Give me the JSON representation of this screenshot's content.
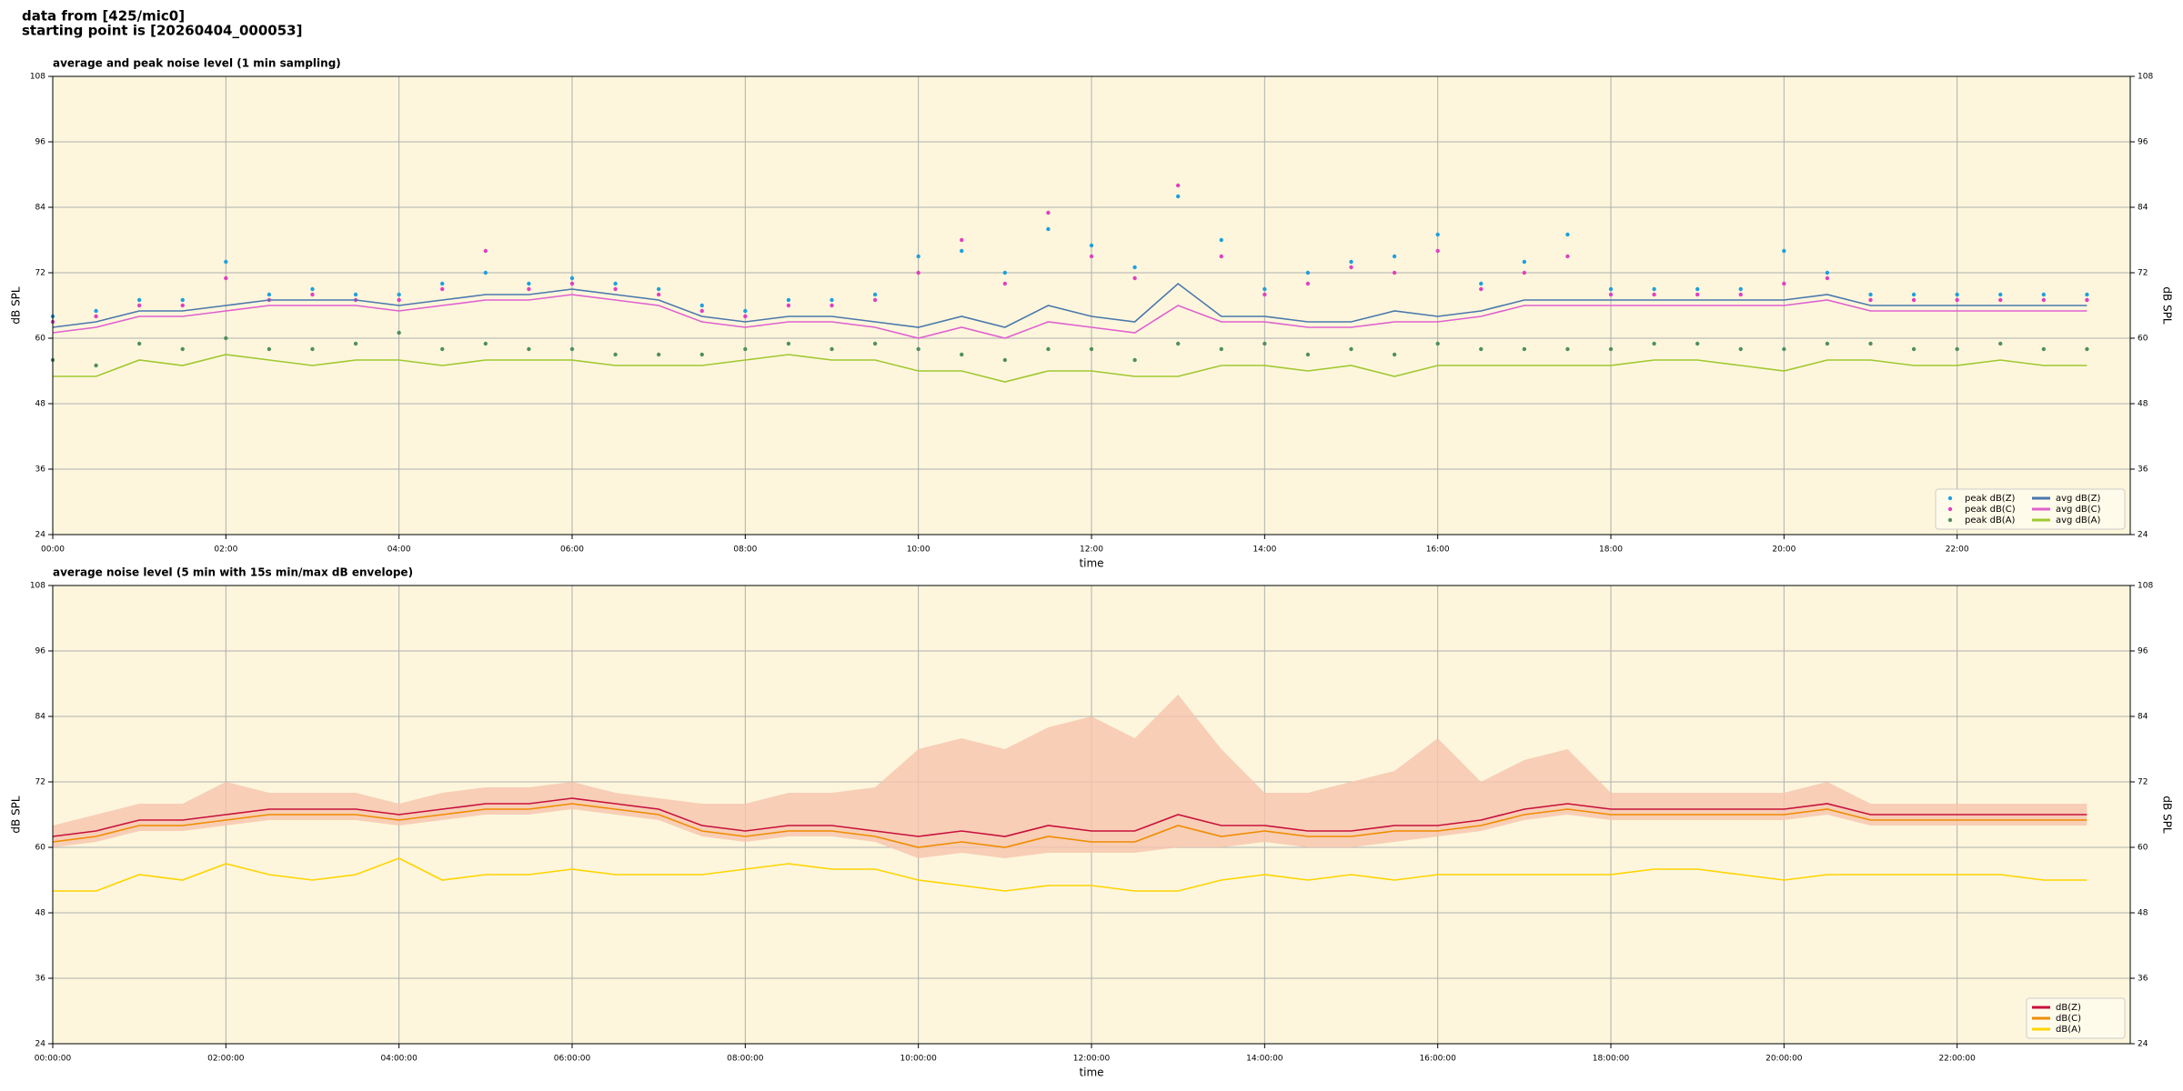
{
  "header": {
    "line1": "data from [425/mic0]",
    "line2": "starting point is [20260404_000053]"
  },
  "chart_data": [
    {
      "type": "line",
      "title": "average and peak noise level (1 min sampling)",
      "x_label": "time",
      "y_label": "dB SPL",
      "background": "#fdf6dc",
      "grid": true,
      "legend": "lower right",
      "legend_columns": 2,
      "xlim": [
        0,
        24
      ],
      "ylim": [
        24,
        108
      ],
      "xticks": [
        {
          "value": 0,
          "label": "00:00"
        },
        {
          "value": 2,
          "label": "02:00"
        },
        {
          "value": 4,
          "label": "04:00"
        },
        {
          "value": 6,
          "label": "06:00"
        },
        {
          "value": 8,
          "label": "08:00"
        },
        {
          "value": 10,
          "label": "10:00"
        },
        {
          "value": 12,
          "label": "12:00"
        },
        {
          "value": 14,
          "label": "14:00"
        },
        {
          "value": 16,
          "label": "16:00"
        },
        {
          "value": 18,
          "label": "18:00"
        },
        {
          "value": 20,
          "label": "20:00"
        },
        {
          "value": 22,
          "label": "22:00"
        }
      ],
      "yticks": [
        24,
        36,
        48,
        60,
        72,
        84,
        96,
        108
      ],
      "x": [
        0,
        0.5,
        1,
        1.5,
        2,
        2.5,
        3,
        3.5,
        4,
        4.5,
        5,
        5.5,
        6,
        6.5,
        7,
        7.5,
        8,
        8.5,
        9,
        9.5,
        10,
        10.5,
        11,
        11.5,
        12,
        12.5,
        13,
        13.5,
        14,
        14.5,
        15,
        15.5,
        16,
        16.5,
        17,
        17.5,
        18,
        18.5,
        19,
        19.5,
        20,
        20.5,
        21,
        21.5,
        22,
        22.5,
        23,
        23.5
      ],
      "series": [
        {
          "name": "peak dB(Z)",
          "kind": "scatter",
          "color": "#1f9fdf",
          "values": [
            64,
            65,
            67,
            67,
            74,
            68,
            69,
            68,
            68,
            70,
            72,
            70,
            71,
            70,
            69,
            66,
            65,
            67,
            67,
            68,
            75,
            76,
            72,
            80,
            77,
            73,
            86,
            78,
            69,
            72,
            74,
            75,
            79,
            70,
            74,
            79,
            69,
            69,
            69,
            69,
            76,
            72,
            68,
            68,
            68,
            68,
            68,
            68
          ]
        },
        {
          "name": "peak dB(C)",
          "kind": "scatter",
          "color": "#e040c0",
          "values": [
            63,
            64,
            66,
            66,
            71,
            67,
            68,
            67,
            67,
            69,
            76,
            69,
            70,
            69,
            68,
            65,
            64,
            66,
            66,
            67,
            72,
            78,
            70,
            83,
            75,
            71,
            88,
            75,
            68,
            70,
            73,
            72,
            76,
            69,
            72,
            75,
            68,
            68,
            68,
            68,
            70,
            71,
            67,
            67,
            67,
            67,
            67,
            67
          ]
        },
        {
          "name": "peak dB(A)",
          "kind": "scatter",
          "color": "#4f8f5f",
          "values": [
            56,
            55,
            59,
            58,
            60,
            58,
            58,
            59,
            61,
            58,
            59,
            58,
            58,
            57,
            57,
            57,
            58,
            59,
            58,
            59,
            58,
            57,
            56,
            58,
            58,
            56,
            59,
            58,
            59,
            57,
            58,
            57,
            59,
            58,
            58,
            58,
            58,
            59,
            59,
            58,
            58,
            59,
            59,
            58,
            58,
            59,
            58,
            58
          ]
        },
        {
          "name": "avg dB(Z)",
          "kind": "line",
          "color": "#4a78ac",
          "values": [
            62,
            63,
            65,
            65,
            66,
            67,
            67,
            67,
            66,
            67,
            68,
            68,
            69,
            68,
            67,
            64,
            63,
            64,
            64,
            63,
            62,
            64,
            62,
            66,
            64,
            63,
            70,
            64,
            64,
            63,
            63,
            65,
            64,
            65,
            67,
            67,
            67,
            67,
            67,
            67,
            67,
            68,
            66,
            66,
            66,
            66,
            66,
            66
          ]
        },
        {
          "name": "avg dB(C)",
          "kind": "line",
          "color": "#e060d0",
          "values": [
            61,
            62,
            64,
            64,
            65,
            66,
            66,
            66,
            65,
            66,
            67,
            67,
            68,
            67,
            66,
            63,
            62,
            63,
            63,
            62,
            60,
            62,
            60,
            63,
            62,
            61,
            66,
            63,
            63,
            62,
            62,
            63,
            63,
            64,
            66,
            66,
            66,
            66,
            66,
            66,
            66,
            67,
            65,
            65,
            65,
            65,
            65,
            65
          ]
        },
        {
          "name": "avg dB(A)",
          "kind": "line",
          "color": "#a0c830",
          "values": [
            53,
            53,
            56,
            55,
            57,
            56,
            55,
            56,
            56,
            55,
            56,
            56,
            56,
            55,
            55,
            55,
            56,
            57,
            56,
            56,
            54,
            54,
            52,
            54,
            54,
            53,
            53,
            55,
            55,
            54,
            55,
            53,
            55,
            55,
            55,
            55,
            55,
            56,
            56,
            55,
            54,
            56,
            56,
            55,
            55,
            56,
            55,
            55
          ]
        }
      ]
    },
    {
      "type": "line",
      "title": "average noise level (5 min with 15s min/max dB envelope)",
      "x_label": "time",
      "y_label": "dB SPL",
      "background": "#fdf6dc",
      "grid": true,
      "legend": "lower right",
      "legend_columns": 1,
      "xlim": [
        0,
        24
      ],
      "ylim": [
        24,
        108
      ],
      "xticks": [
        {
          "value": 0,
          "label": "00:00:00"
        },
        {
          "value": 2,
          "label": "02:00:00"
        },
        {
          "value": 4,
          "label": "04:00:00"
        },
        {
          "value": 6,
          "label": "06:00:00"
        },
        {
          "value": 8,
          "label": "08:00:00"
        },
        {
          "value": 10,
          "label": "10:00:00"
        },
        {
          "value": 12,
          "label": "12:00:00"
        },
        {
          "value": 14,
          "label": "14:00:00"
        },
        {
          "value": 16,
          "label": "16:00:00"
        },
        {
          "value": 18,
          "label": "18:00:00"
        },
        {
          "value": 20,
          "label": "20:00:00"
        },
        {
          "value": 22,
          "label": "22:00:00"
        }
      ],
      "yticks": [
        24,
        36,
        48,
        60,
        72,
        84,
        96,
        108
      ],
      "x": [
        0,
        0.5,
        1,
        1.5,
        2,
        2.5,
        3,
        3.5,
        4,
        4.5,
        5,
        5.5,
        6,
        6.5,
        7,
        7.5,
        8,
        8.5,
        9,
        9.5,
        10,
        10.5,
        11,
        11.5,
        12,
        12.5,
        13,
        13.5,
        14,
        14.5,
        15,
        15.5,
        16,
        16.5,
        17,
        17.5,
        18,
        18.5,
        19,
        19.5,
        20,
        20.5,
        21,
        21.5,
        22,
        22.5,
        23,
        23.5
      ],
      "envelope": {
        "color": "#f6c4ac",
        "upper": [
          64,
          66,
          68,
          68,
          72,
          70,
          70,
          70,
          68,
          70,
          71,
          71,
          72,
          70,
          69,
          68,
          68,
          70,
          70,
          71,
          78,
          80,
          78,
          82,
          84,
          80,
          88,
          78,
          70,
          70,
          72,
          74,
          80,
          72,
          76,
          78,
          70,
          70,
          70,
          70,
          70,
          72,
          68,
          68,
          68,
          68,
          68,
          68
        ],
        "lower": [
          60,
          61,
          63,
          63,
          64,
          65,
          65,
          65,
          64,
          65,
          66,
          66,
          67,
          66,
          65,
          62,
          61,
          62,
          62,
          61,
          58,
          59,
          58,
          59,
          59,
          59,
          60,
          60,
          61,
          60,
          60,
          61,
          62,
          63,
          65,
          66,
          65,
          65,
          65,
          65,
          65,
          66,
          64,
          64,
          64,
          64,
          64,
          64
        ]
      },
      "series": [
        {
          "name": "dB(Z)",
          "kind": "line",
          "color": "#c8103c",
          "values": [
            62,
            63,
            65,
            65,
            66,
            67,
            67,
            67,
            66,
            67,
            68,
            68,
            69,
            68,
            67,
            64,
            63,
            64,
            64,
            63,
            62,
            63,
            62,
            64,
            63,
            63,
            66,
            64,
            64,
            63,
            63,
            64,
            64,
            65,
            67,
            68,
            67,
            67,
            67,
            67,
            67,
            68,
            66,
            66,
            66,
            66,
            66,
            66
          ]
        },
        {
          "name": "dB(C)",
          "kind": "line",
          "color": "#f08c00",
          "values": [
            61,
            62,
            64,
            64,
            65,
            66,
            66,
            66,
            65,
            66,
            67,
            67,
            68,
            67,
            66,
            63,
            62,
            63,
            63,
            62,
            60,
            61,
            60,
            62,
            61,
            61,
            64,
            62,
            63,
            62,
            62,
            63,
            63,
            64,
            66,
            67,
            66,
            66,
            66,
            66,
            66,
            67,
            65,
            65,
            65,
            65,
            65,
            65
          ]
        },
        {
          "name": "dB(A)",
          "kind": "line",
          "color": "#ffd400",
          "values": [
            52,
            52,
            55,
            54,
            57,
            55,
            54,
            55,
            58,
            54,
            55,
            55,
            56,
            55,
            55,
            55,
            56,
            57,
            56,
            56,
            54,
            53,
            52,
            53,
            53,
            52,
            52,
            54,
            55,
            54,
            55,
            54,
            55,
            55,
            55,
            55,
            55,
            56,
            56,
            55,
            54,
            55,
            55,
            55,
            55,
            55,
            54,
            54
          ]
        }
      ]
    }
  ]
}
